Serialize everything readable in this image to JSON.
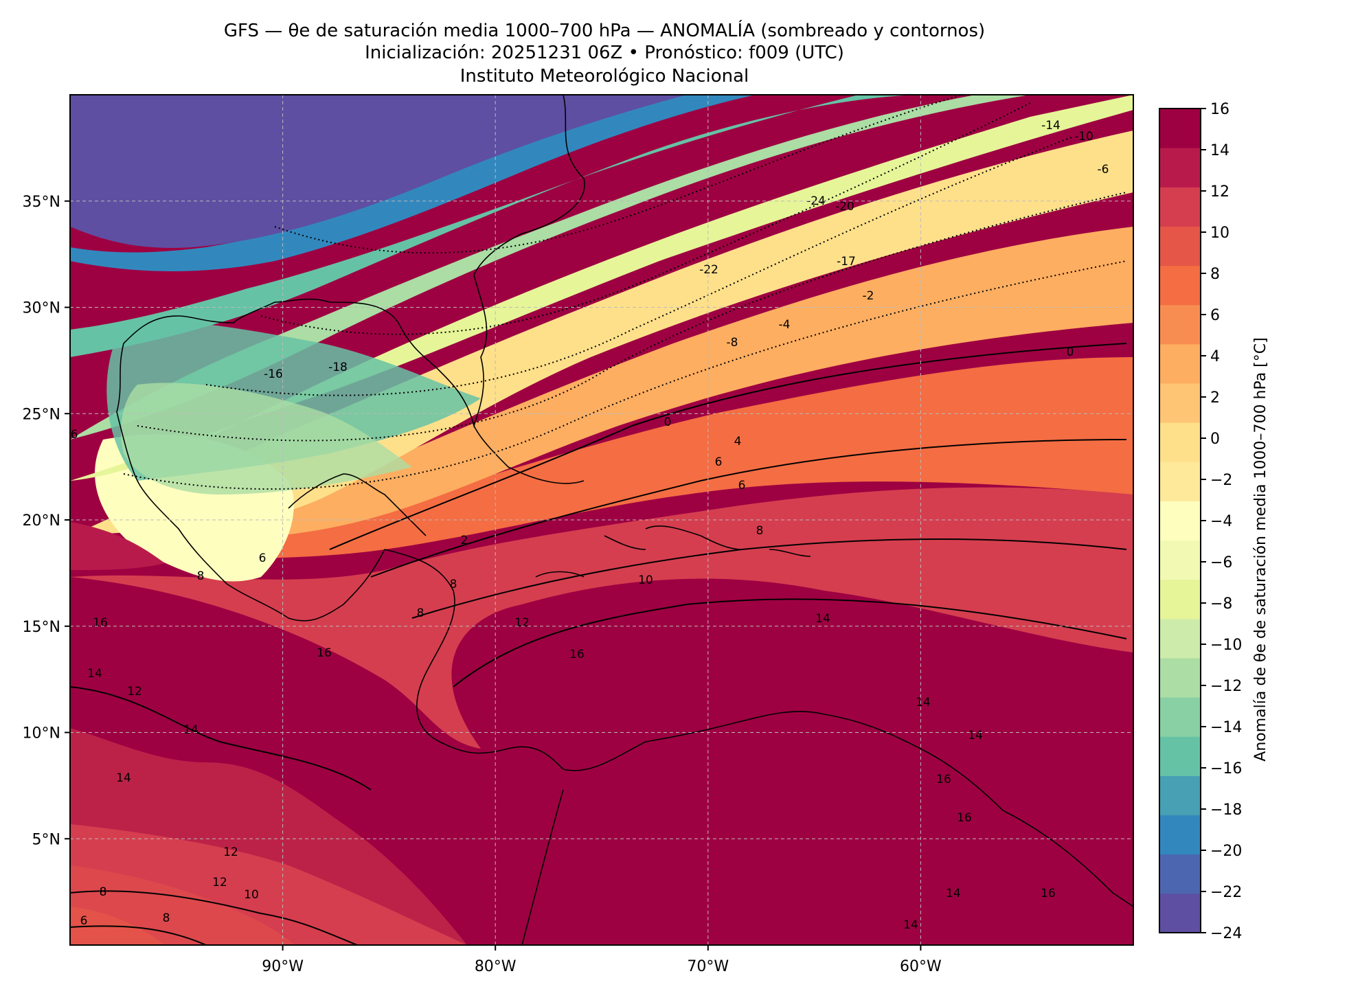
{
  "header": {
    "title": "GFS — θe de saturación media 1000–700 hPa — ANOMALÍA (sombreado y contornos)",
    "subtitle": "Inicialización: 20251231 06Z   •   Pronóstico: f009 (UTC)",
    "institution": "Instituto Meteorológico Nacional"
  },
  "map": {
    "projection": "PlateCarree",
    "lon_range": [
      -100,
      -50
    ],
    "lat_range": [
      0,
      40
    ],
    "lat_ticks": [
      "35°N",
      "30°N",
      "25°N",
      "20°N",
      "15°N",
      "10°N",
      "5°N"
    ],
    "lon_ticks": [
      "90°W",
      "80°W",
      "70°W",
      "60°W"
    ],
    "grid": true
  },
  "colorbar": {
    "label": "Anomalía de θe de saturación media 1000–700 hPa [°C]",
    "min": -24,
    "max": 16,
    "step": 2,
    "ticks": [
      "16",
      "14",
      "12",
      "10",
      "8",
      "6",
      "4",
      "2",
      "0",
      "−2",
      "−4",
      "−6",
      "−8",
      "−10",
      "−12",
      "−14",
      "−16",
      "−18",
      "−20",
      "−22",
      "−24"
    ],
    "colors": [
      "#5e4fa2",
      "#4d66b0",
      "#3288bd",
      "#47a0b3",
      "#66c2a5",
      "#89d0a4",
      "#abdda4",
      "#cdebaa",
      "#e6f598",
      "#f1f9b2",
      "#fefebf",
      "#fee89a",
      "#fee08b",
      "#fdc574",
      "#fdae61",
      "#f88d52",
      "#f46d43",
      "#e55649",
      "#d53e4f",
      "#b81b4b",
      "#9e0142"
    ]
  },
  "contour_labels": [
    {
      "text": "-24"
    },
    {
      "text": "-20"
    },
    {
      "text": "-14"
    },
    {
      "text": "-10"
    },
    {
      "text": "-6"
    },
    {
      "text": "-22"
    },
    {
      "text": "-17"
    },
    {
      "text": "-2"
    },
    {
      "text": "-4"
    },
    {
      "text": "-8"
    },
    {
      "text": "-16"
    },
    {
      "text": "-18"
    },
    {
      "text": "0"
    },
    {
      "text": "0"
    },
    {
      "text": "4"
    },
    {
      "text": "6"
    },
    {
      "text": "6"
    },
    {
      "text": "2"
    },
    {
      "text": "8"
    },
    {
      "text": "8"
    },
    {
      "text": "10"
    },
    {
      "text": "12"
    },
    {
      "text": "14"
    },
    {
      "text": "16"
    },
    {
      "text": "16"
    },
    {
      "text": "16"
    },
    {
      "text": "14"
    },
    {
      "text": "12"
    },
    {
      "text": "14"
    },
    {
      "text": "14"
    },
    {
      "text": "12"
    },
    {
      "text": "12"
    },
    {
      "text": "10"
    },
    {
      "text": "8"
    },
    {
      "text": "8"
    },
    {
      "text": "6"
    },
    {
      "text": "14"
    },
    {
      "text": "14"
    },
    {
      "text": "16"
    },
    {
      "text": "16"
    },
    {
      "text": "14"
    },
    {
      "text": "16"
    },
    {
      "text": "14"
    },
    {
      "text": "6"
    },
    {
      "text": "8"
    },
    {
      "text": "8"
    },
    {
      "text": "6"
    }
  ]
}
